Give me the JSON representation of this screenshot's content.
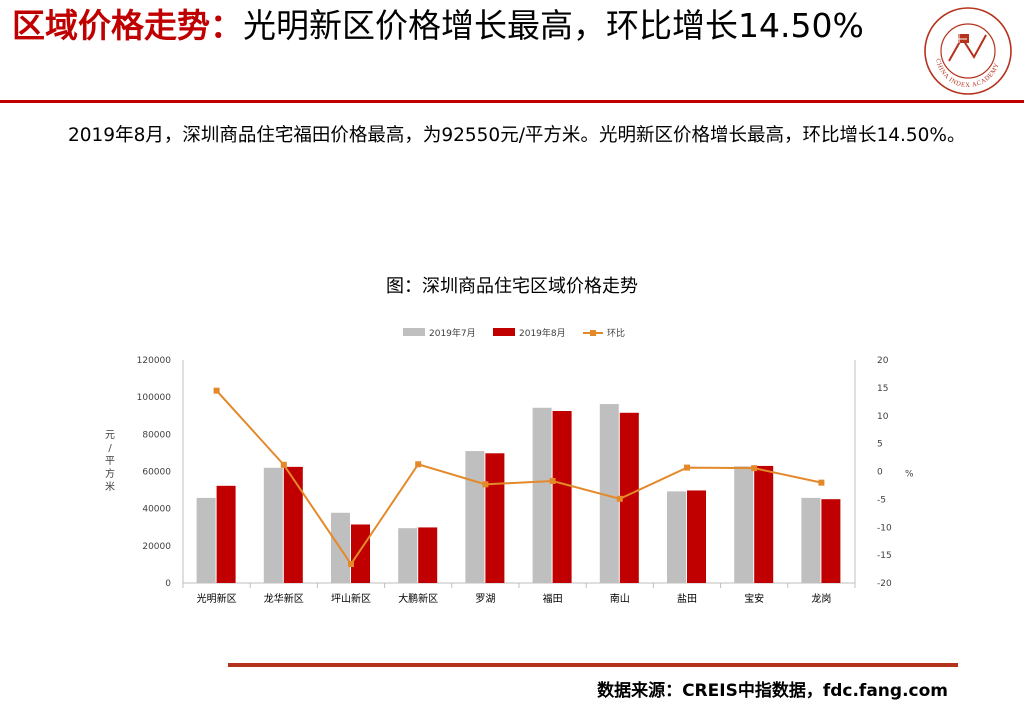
{
  "header": {
    "title_lead": "区域价格走势：",
    "title_rest": "光明新区价格增长最高，环比增长14.50%",
    "logo_text": "CHINA INDEX ACADEMY"
  },
  "summary": "2019年8月，深圳商品住宅福田价格最高，为92550元/平方米。光明新区价格增长最高，环比增长14.50%。",
  "chart_title": "图：深圳商品住宅区域价格走势",
  "footer": {
    "source": "数据来源：CREIS中指数据，fdc.fang.com"
  },
  "colors": {
    "accent": "#c00000",
    "jul": "#bfbfbf",
    "aug": "#c00000",
    "mom": "#e4892a"
  },
  "chart_data": {
    "type": "bar",
    "categories": [
      "光明新区",
      "龙华新区",
      "坪山新区",
      "大鹏新区",
      "罗湖",
      "福田",
      "南山",
      "盐田",
      "宝安",
      "龙岗"
    ],
    "series": [
      {
        "name": "2019年7月",
        "type": "bar",
        "axis": "left",
        "values": [
          45800,
          62000,
          37800,
          29500,
          71000,
          94300,
          96300,
          49300,
          62800,
          45800
        ]
      },
      {
        "name": "2019年8月",
        "type": "bar",
        "axis": "left",
        "values": [
          52300,
          62500,
          31500,
          29900,
          69800,
          92550,
          91600,
          49800,
          63000,
          45100
        ]
      },
      {
        "name": "环比",
        "type": "line",
        "axis": "right",
        "values": [
          14.5,
          1.2,
          -16.6,
          1.3,
          -2.3,
          -1.7,
          -4.9,
          0.7,
          0.6,
          -2.0
        ]
      }
    ],
    "ylabel": "元/平方米",
    "ylim": [
      0,
      120000
    ],
    "yticks": [
      0,
      20000,
      40000,
      60000,
      80000,
      100000,
      120000
    ],
    "y2label": "%",
    "y2lim": [
      -20,
      20
    ],
    "y2ticks": [
      -20,
      -15,
      -10,
      -5,
      0,
      5,
      10,
      15,
      20
    ],
    "legend": "top",
    "grid": false
  }
}
